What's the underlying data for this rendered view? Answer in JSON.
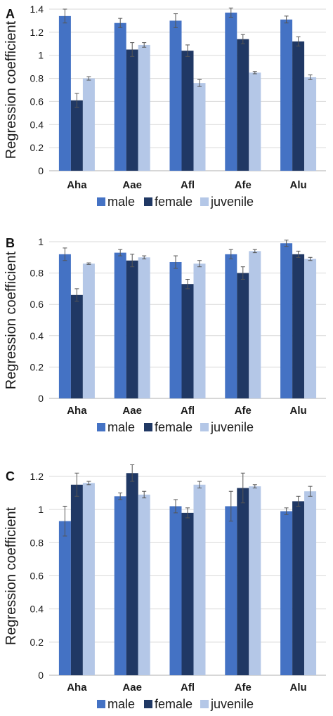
{
  "colors": {
    "male": "#4472c4",
    "female": "#203864",
    "juvenile": "#b4c7e7",
    "grid": "#d9d9d9",
    "error": "#555555"
  },
  "chart_data": [
    {
      "type": "bar",
      "panel": "A",
      "ylabel": "Regression coefficient",
      "ylim": [
        0,
        1.4
      ],
      "yticks": [
        "0",
        "0.2",
        "0.4",
        "0.6",
        "0.8",
        "1",
        "1.2",
        "1.4"
      ],
      "ytick_values": [
        0,
        0.2,
        0.4,
        0.6,
        0.8,
        1.0,
        1.2,
        1.4
      ],
      "grid": true,
      "legend_position": "bottom",
      "categories": [
        "Aha",
        "Aae",
        "Afl",
        "Afe",
        "Alu"
      ],
      "series": [
        {
          "name": "male",
          "color_key": "male",
          "values": [
            1.34,
            1.28,
            1.3,
            1.37,
            1.31
          ],
          "errors": [
            0.06,
            0.04,
            0.06,
            0.04,
            0.03
          ]
        },
        {
          "name": "female",
          "color_key": "female",
          "values": [
            0.61,
            1.05,
            1.04,
            1.14,
            1.12
          ],
          "errors": [
            0.06,
            0.06,
            0.05,
            0.04,
            0.04
          ]
        },
        {
          "name": "juvenile",
          "color_key": "juvenile",
          "values": [
            0.8,
            1.09,
            0.76,
            0.85,
            0.81
          ],
          "errors": [
            0.015,
            0.02,
            0.03,
            0.01,
            0.02
          ]
        }
      ]
    },
    {
      "type": "bar",
      "panel": "B",
      "ylabel": "Regression coefficient",
      "ylim": [
        0,
        1.0
      ],
      "yticks": [
        "0",
        "0.2",
        "0.4",
        "0.6",
        "0.8",
        "1"
      ],
      "ytick_values": [
        0,
        0.2,
        0.4,
        0.6,
        0.8,
        1.0
      ],
      "grid": true,
      "legend_position": "bottom",
      "categories": [
        "Aha",
        "Aae",
        "Afl",
        "Afe",
        "Alu"
      ],
      "series": [
        {
          "name": "male",
          "color_key": "male",
          "values": [
            0.92,
            0.93,
            0.87,
            0.92,
            0.99
          ],
          "errors": [
            0.04,
            0.02,
            0.04,
            0.03,
            0.02
          ]
        },
        {
          "name": "female",
          "color_key": "female",
          "values": [
            0.66,
            0.88,
            0.73,
            0.8,
            0.92
          ],
          "errors": [
            0.04,
            0.04,
            0.03,
            0.04,
            0.02
          ]
        },
        {
          "name": "juvenile",
          "color_key": "juvenile",
          "values": [
            0.86,
            0.9,
            0.86,
            0.94,
            0.89
          ],
          "errors": [
            0.005,
            0.01,
            0.02,
            0.01,
            0.01
          ]
        }
      ]
    },
    {
      "type": "bar",
      "panel": "C",
      "ylabel": "Regression coefficient",
      "ylim": [
        0,
        1.2
      ],
      "yticks": [
        "0",
        "0.2",
        "0.4",
        "0.6",
        "0.8",
        "1",
        "1.2"
      ],
      "ytick_values": [
        0,
        0.2,
        0.4,
        0.6,
        0.8,
        1.0,
        1.2
      ],
      "grid": true,
      "legend_position": "bottom",
      "categories": [
        "Aha",
        "Aae",
        "Afl",
        "Afe",
        "Alu"
      ],
      "series": [
        {
          "name": "male",
          "color_key": "male",
          "values": [
            0.93,
            1.08,
            1.02,
            1.02,
            0.99
          ],
          "errors": [
            0.09,
            0.02,
            0.04,
            0.09,
            0.02
          ]
        },
        {
          "name": "female",
          "color_key": "female",
          "values": [
            1.15,
            1.22,
            0.98,
            1.13,
            1.05
          ],
          "errors": [
            0.07,
            0.05,
            0.03,
            0.09,
            0.03
          ]
        },
        {
          "name": "juvenile",
          "color_key": "juvenile",
          "values": [
            1.16,
            1.09,
            1.15,
            1.14,
            1.11
          ],
          "errors": [
            0.01,
            0.02,
            0.02,
            0.01,
            0.03
          ]
        }
      ]
    }
  ]
}
